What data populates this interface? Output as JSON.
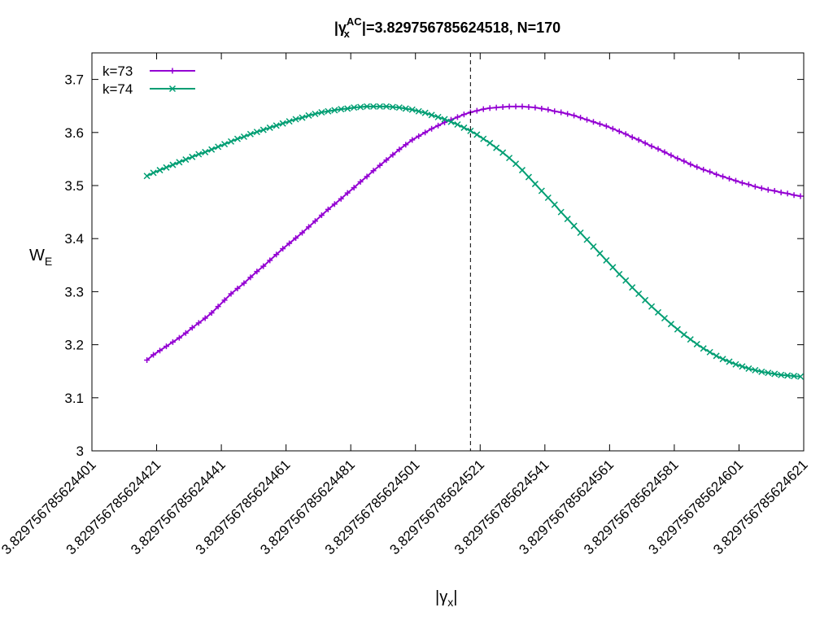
{
  "chart_data": {
    "type": "line",
    "title": "|γx^AC|=3.829756785624518, N=170",
    "title_parts": {
      "bar_open": "|",
      "symbol": "γ",
      "subscript": "x",
      "superscript": "AC",
      "rest": "|=3.829756785624518, N=170"
    },
    "xlabel": "|γx|",
    "xlabel_parts": {
      "main": "|γ",
      "subscript": "x",
      "close": "|"
    },
    "ylabel": "WE",
    "ylabel_parts": {
      "main": "W",
      "subscript": "E"
    },
    "ylim": [
      3.0,
      3.75
    ],
    "y_ticks": [
      "3",
      "3.1",
      "3.2",
      "3.3",
      "3.4",
      "3.5",
      "3.6",
      "3.7"
    ],
    "x_ticks": [
      "3.829756785624401",
      "3.829756785624421",
      "3.829756785624441",
      "3.829756785624461",
      "3.829756785624481",
      "3.829756785624501",
      "3.829756785624521",
      "3.829756785624541",
      "3.829756785624561",
      "3.829756785624581",
      "3.829756785624601",
      "3.829756785624621"
    ],
    "xlim": [
      "3.829756785624401",
      "3.829756785624621"
    ],
    "vertical_line_x": "3.829756785624518",
    "legend_position": "top-left",
    "grid": false,
    "series": [
      {
        "name": "k=73",
        "color": "#9400d3",
        "marker": "plus",
        "x": [
          "3.829756785624418",
          "3.829756785624420",
          "3.829756785624422",
          "3.829756785624424",
          "3.829756785624426",
          "3.829756785624428",
          "3.829756785624430",
          "3.829756785624432",
          "3.829756785624434",
          "3.829756785624436",
          "3.829756785624438",
          "3.829756785624440",
          "3.829756785624442",
          "3.829756785624444",
          "3.829756785624446",
          "3.829756785624448",
          "3.829756785624450",
          "3.829756785624452",
          "3.829756785624454",
          "3.829756785624456",
          "3.829756785624458",
          "3.829756785624460",
          "3.829756785624462",
          "3.829756785624464",
          "3.829756785624466",
          "3.829756785624468",
          "3.829756785624470",
          "3.829756785624472",
          "3.829756785624474",
          "3.829756785624476",
          "3.829756785624478",
          "3.829756785624480",
          "3.829756785624482",
          "3.829756785624484",
          "3.829756785624486",
          "3.829756785624488",
          "3.829756785624490",
          "3.829756785624492",
          "3.829756785624494",
          "3.829756785624496",
          "3.829756785624498",
          "3.829756785624500",
          "3.829756785624502",
          "3.829756785624504",
          "3.829756785624506",
          "3.829756785624508",
          "3.829756785624510",
          "3.829756785624512",
          "3.829756785624514",
          "3.829756785624516",
          "3.829756785624518",
          "3.829756785624520",
          "3.829756785624522",
          "3.829756785624524",
          "3.829756785624526",
          "3.829756785624528",
          "3.829756785624530",
          "3.829756785624532",
          "3.829756785624534",
          "3.829756785624536",
          "3.829756785624538",
          "3.829756785624540",
          "3.829756785624542",
          "3.829756785624544",
          "3.829756785624546",
          "3.829756785624548",
          "3.829756785624550",
          "3.829756785624552",
          "3.829756785624554",
          "3.829756785624556",
          "3.829756785624558",
          "3.829756785624560",
          "3.829756785624562",
          "3.829756785624564",
          "3.829756785624566",
          "3.829756785624568",
          "3.829756785624570",
          "3.829756785624572",
          "3.829756785624574",
          "3.829756785624576",
          "3.829756785624578",
          "3.829756785624580",
          "3.829756785624582",
          "3.829756785624584",
          "3.829756785624586",
          "3.829756785624588",
          "3.829756785624590",
          "3.829756785624592",
          "3.829756785624594",
          "3.829756785624596",
          "3.829756785624598",
          "3.829756785624600",
          "3.829756785624602",
          "3.829756785624604",
          "3.829756785624606",
          "3.829756785624608",
          "3.829756785624610",
          "3.829756785624612",
          "3.829756785624614",
          "3.829756785624616",
          "3.829756785624618",
          "3.829756785624620"
        ],
        "y": [
          3.171,
          3.181,
          3.189,
          3.197,
          3.205,
          3.213,
          3.222,
          3.232,
          3.241,
          3.25,
          3.26,
          3.272,
          3.284,
          3.296,
          3.306,
          3.316,
          3.327,
          3.338,
          3.348,
          3.359,
          3.37,
          3.381,
          3.391,
          3.401,
          3.411,
          3.422,
          3.433,
          3.444,
          3.455,
          3.465,
          3.475,
          3.486,
          3.496,
          3.507,
          3.517,
          3.528,
          3.538,
          3.548,
          3.558,
          3.568,
          3.577,
          3.586,
          3.593,
          3.6,
          3.607,
          3.613,
          3.619,
          3.624,
          3.629,
          3.634,
          3.638,
          3.641,
          3.644,
          3.646,
          3.647,
          3.648,
          3.649,
          3.649,
          3.649,
          3.648,
          3.647,
          3.645,
          3.643,
          3.64,
          3.638,
          3.635,
          3.632,
          3.628,
          3.624,
          3.62,
          3.616,
          3.612,
          3.607,
          3.602,
          3.597,
          3.591,
          3.586,
          3.58,
          3.574,
          3.569,
          3.563,
          3.557,
          3.551,
          3.546,
          3.54,
          3.535,
          3.53,
          3.526,
          3.521,
          3.517,
          3.513,
          3.509,
          3.505,
          3.502,
          3.498,
          3.495,
          3.492,
          3.49,
          3.487,
          3.485,
          3.482,
          3.48
        ]
      },
      {
        "name": "k=74",
        "color": "#009e73",
        "marker": "cross",
        "x": [
          "3.829756785624418",
          "3.829756785624420",
          "3.829756785624422",
          "3.829756785624424",
          "3.829756785624426",
          "3.829756785624428",
          "3.829756785624430",
          "3.829756785624432",
          "3.829756785624434",
          "3.829756785624436",
          "3.829756785624438",
          "3.829756785624440",
          "3.829756785624442",
          "3.829756785624444",
          "3.829756785624446",
          "3.829756785624448",
          "3.829756785624450",
          "3.829756785624452",
          "3.829756785624454",
          "3.829756785624456",
          "3.829756785624458",
          "3.829756785624460",
          "3.829756785624462",
          "3.829756785624464",
          "3.829756785624466",
          "3.829756785624468",
          "3.829756785624470",
          "3.829756785624472",
          "3.829756785624474",
          "3.829756785624476",
          "3.829756785624478",
          "3.829756785624480",
          "3.829756785624482",
          "3.829756785624484",
          "3.829756785624486",
          "3.829756785624488",
          "3.829756785624490",
          "3.829756785624492",
          "3.829756785624494",
          "3.829756785624496",
          "3.829756785624498",
          "3.829756785624500",
          "3.829756785624502",
          "3.829756785624504",
          "3.829756785624506",
          "3.829756785624508",
          "3.829756785624510",
          "3.829756785624512",
          "3.829756785624514",
          "3.829756785624516",
          "3.829756785624518",
          "3.829756785624520",
          "3.829756785624522",
          "3.829756785624524",
          "3.829756785624526",
          "3.829756785624528",
          "3.829756785624530",
          "3.829756785624532",
          "3.829756785624534",
          "3.829756785624536",
          "3.829756785624538",
          "3.829756785624540",
          "3.829756785624542",
          "3.829756785624544",
          "3.829756785624546",
          "3.829756785624548",
          "3.829756785624550",
          "3.829756785624552",
          "3.829756785624554",
          "3.829756785624556",
          "3.829756785624558",
          "3.829756785624560",
          "3.829756785624562",
          "3.829756785624564",
          "3.829756785624566",
          "3.829756785624568",
          "3.829756785624570",
          "3.829756785624572",
          "3.829756785624574",
          "3.829756785624576",
          "3.829756785624578",
          "3.829756785624580",
          "3.829756785624582",
          "3.829756785624584",
          "3.829756785624586",
          "3.829756785624588",
          "3.829756785624590",
          "3.829756785624592",
          "3.829756785624594",
          "3.829756785624596",
          "3.829756785624598",
          "3.829756785624600",
          "3.829756785624602",
          "3.829756785624604",
          "3.829756785624606",
          "3.829756785624608",
          "3.829756785624610",
          "3.829756785624612",
          "3.829756785624614",
          "3.829756785624616",
          "3.829756785624618",
          "3.829756785624620"
        ],
        "y": [
          3.518,
          3.524,
          3.529,
          3.534,
          3.539,
          3.544,
          3.549,
          3.554,
          3.559,
          3.563,
          3.568,
          3.573,
          3.578,
          3.583,
          3.588,
          3.592,
          3.597,
          3.601,
          3.605,
          3.609,
          3.613,
          3.617,
          3.621,
          3.625,
          3.628,
          3.632,
          3.635,
          3.638,
          3.64,
          3.642,
          3.644,
          3.645,
          3.647,
          3.648,
          3.649,
          3.649,
          3.649,
          3.649,
          3.648,
          3.647,
          3.645,
          3.643,
          3.64,
          3.637,
          3.633,
          3.629,
          3.625,
          3.62,
          3.615,
          3.609,
          3.603,
          3.596,
          3.588,
          3.58,
          3.571,
          3.562,
          3.552,
          3.541,
          3.529,
          3.516,
          3.503,
          3.49,
          3.477,
          3.464,
          3.45,
          3.437,
          3.424,
          3.411,
          3.398,
          3.385,
          3.372,
          3.359,
          3.346,
          3.333,
          3.321,
          3.308,
          3.296,
          3.284,
          3.272,
          3.261,
          3.25,
          3.239,
          3.229,
          3.219,
          3.21,
          3.201,
          3.193,
          3.186,
          3.179,
          3.173,
          3.168,
          3.163,
          3.159,
          3.155,
          3.152,
          3.149,
          3.147,
          3.145,
          3.143,
          3.142,
          3.141,
          3.14
        ]
      }
    ]
  }
}
